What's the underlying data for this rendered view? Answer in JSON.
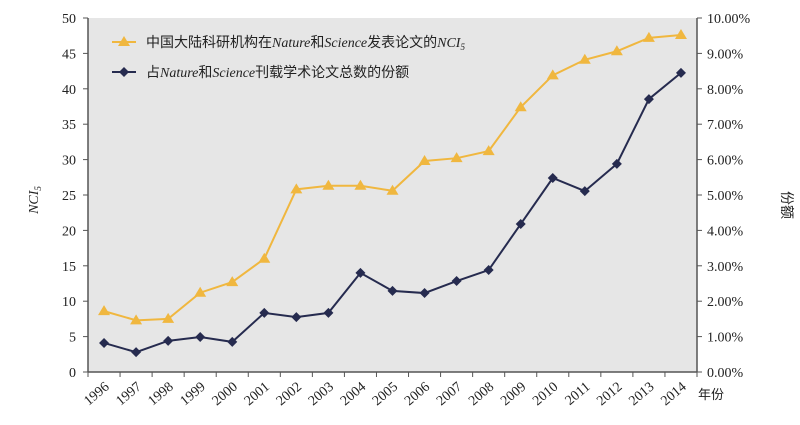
{
  "chart_data": {
    "type": "line",
    "title": "",
    "categories": [
      "1996",
      "1997",
      "1998",
      "1999",
      "2000",
      "2001",
      "2002",
      "2003",
      "2004",
      "2005",
      "2006",
      "2007",
      "2008",
      "2009",
      "2010",
      "2011",
      "2012",
      "2013",
      "2014"
    ],
    "xlabel": "年份",
    "ylabel": "NCI5",
    "ylabel_main": "NCI",
    "ylabel_sub": "5",
    "y2label": "份额",
    "ylim": [
      0,
      50
    ],
    "y2lim": [
      0,
      10
    ],
    "yticks": [
      "0",
      "5",
      "10",
      "15",
      "20",
      "25",
      "30",
      "35",
      "40",
      "45",
      "50"
    ],
    "y2ticks": [
      "0.00%",
      "1.00%",
      "2.00%",
      "3.00%",
      "4.00%",
      "5.00%",
      "6.00%",
      "7.00%",
      "8.00%",
      "9.00%",
      "10.00%"
    ],
    "grid": false,
    "legend_position": "top-left",
    "series": [
      {
        "name": "中国大陆科研机构在Nature和Science发表论文的NCI5",
        "legend_prefix": "中国大陆科研机构在",
        "legend_it1": "Nature",
        "legend_mid": "和",
        "legend_it2": "Science",
        "legend_suffix": "发表论文的",
        "legend_it3": "NCI",
        "legend_sub": "5",
        "axis": "left",
        "color": "#F0B73F",
        "marker": "triangle",
        "values": [
          8.6,
          7.3,
          7.5,
          11.2,
          12.7,
          16.0,
          25.8,
          26.3,
          26.3,
          25.6,
          29.8,
          30.2,
          31.2,
          37.4,
          41.9,
          44.1,
          45.3,
          47.2,
          47.6
        ]
      },
      {
        "name": "占Nature和Science刊载学术论文总数的份额",
        "legend_prefix": "占",
        "legend_it1": "Nature",
        "legend_mid": "和",
        "legend_it2": "Science",
        "legend_suffix": "刊载学术论文总数的份额",
        "axis": "right",
        "unit": "%",
        "color": "#262B4F",
        "marker": "diamond",
        "values": [
          0.82,
          0.56,
          0.88,
          0.99,
          0.85,
          1.67,
          1.55,
          1.67,
          2.8,
          2.29,
          2.23,
          2.57,
          2.88,
          4.18,
          5.48,
          5.11,
          5.88,
          7.71,
          8.45
        ]
      }
    ]
  }
}
